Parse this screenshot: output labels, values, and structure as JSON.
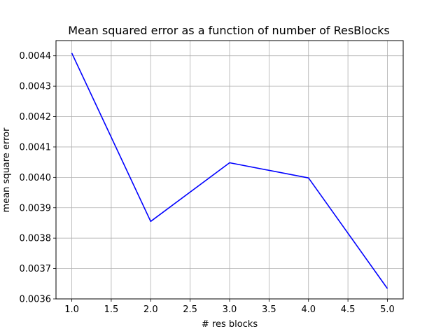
{
  "chart_data": {
    "type": "line",
    "title": "Mean squared error as a function of number of ResBlocks",
    "xlabel": "# res blocks",
    "ylabel": "mean square error",
    "xlim": [
      0.8,
      5.2
    ],
    "ylim": [
      0.0036,
      0.00445
    ],
    "xticks": [
      "1.0",
      "1.5",
      "2.0",
      "2.5",
      "3.0",
      "3.5",
      "4.0",
      "4.5",
      "5.0"
    ],
    "yticks": [
      "0.0036",
      "0.0037",
      "0.0038",
      "0.0039",
      "0.0040",
      "0.0041",
      "0.0042",
      "0.0043",
      "0.0044"
    ],
    "grid": true,
    "line_color": "#0000ff",
    "x": [
      1.0,
      2.0,
      3.0,
      4.0,
      5.0
    ],
    "y": [
      0.004409,
      0.003855,
      0.004048,
      0.003998,
      0.003634
    ]
  }
}
